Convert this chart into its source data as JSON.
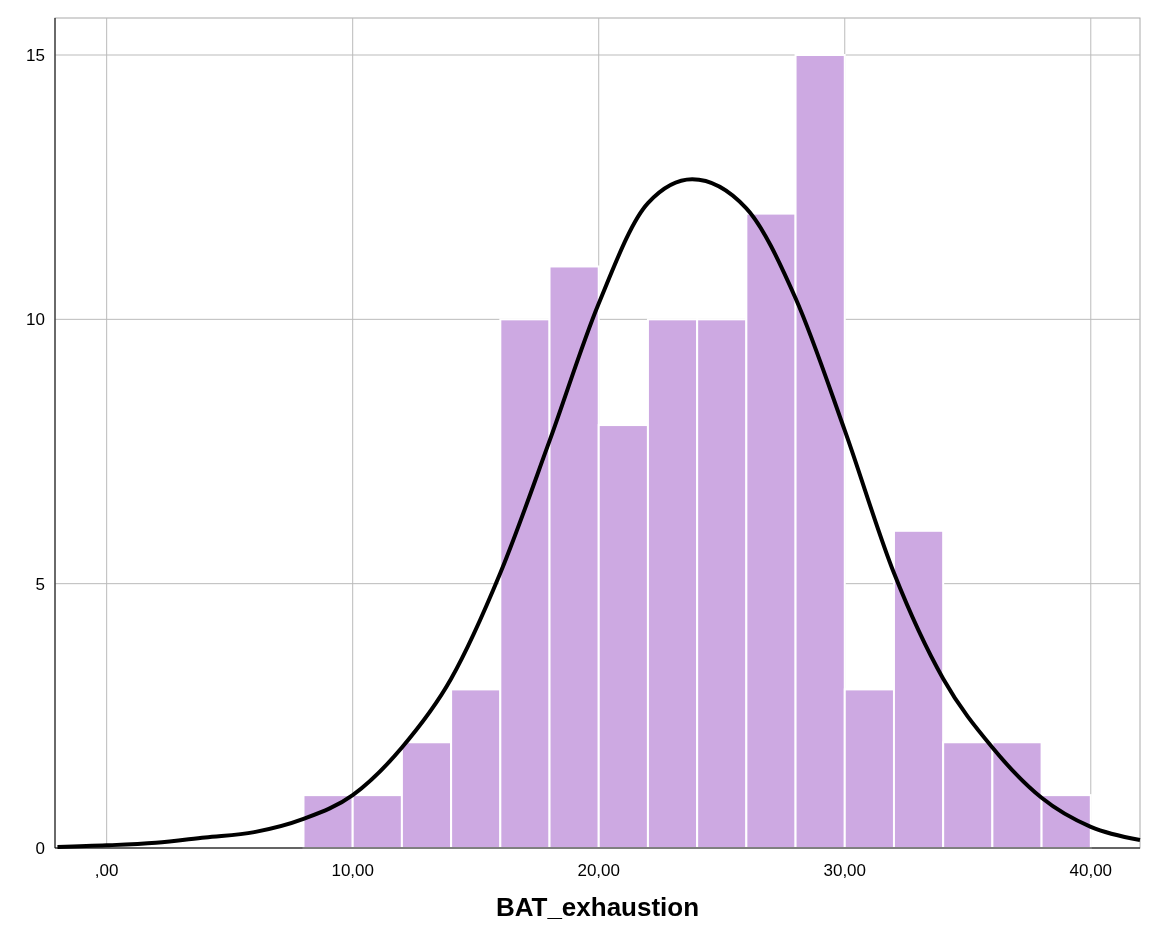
{
  "chart_data": {
    "type": "histogram",
    "xlabel": "BAT_exhaustion",
    "bins": [
      8,
      10,
      12,
      14,
      16,
      18,
      20,
      22,
      24,
      26,
      28,
      30,
      32,
      34,
      36,
      38,
      40
    ],
    "values": [
      1,
      1,
      2,
      3,
      10,
      11,
      8,
      10,
      10,
      12,
      15,
      3,
      6,
      2,
      2,
      1
    ],
    "color": "#cda9e2",
    "series": [
      {
        "type": "line",
        "color": "#000000",
        "x": [
          -2,
          0,
          2,
          4,
          6,
          8,
          10,
          12,
          14,
          16,
          18,
          20,
          22,
          23.8,
          26,
          28,
          30,
          32,
          34,
          36,
          38,
          40,
          42
        ],
        "values": [
          0.02,
          0.05,
          0.1,
          0.2,
          0.3,
          0.55,
          1.0,
          1.9,
          3.2,
          5.2,
          7.7,
          10.3,
          12.2,
          12.65,
          12.1,
          10.4,
          7.9,
          5.2,
          3.2,
          1.9,
          0.95,
          0.4,
          0.15
        ]
      }
    ],
    "xlim": [
      -2.1,
      42
    ],
    "ylim": [
      0,
      15.7
    ],
    "xticks": [
      {
        "value": 0,
        "label": ",00"
      },
      {
        "value": 10,
        "label": "10,00"
      },
      {
        "value": 20,
        "label": "20,00"
      },
      {
        "value": 30,
        "label": "30,00"
      },
      {
        "value": 40,
        "label": "40,00"
      }
    ],
    "yticks": [
      0,
      5,
      10,
      15
    ],
    "grid": true
  }
}
